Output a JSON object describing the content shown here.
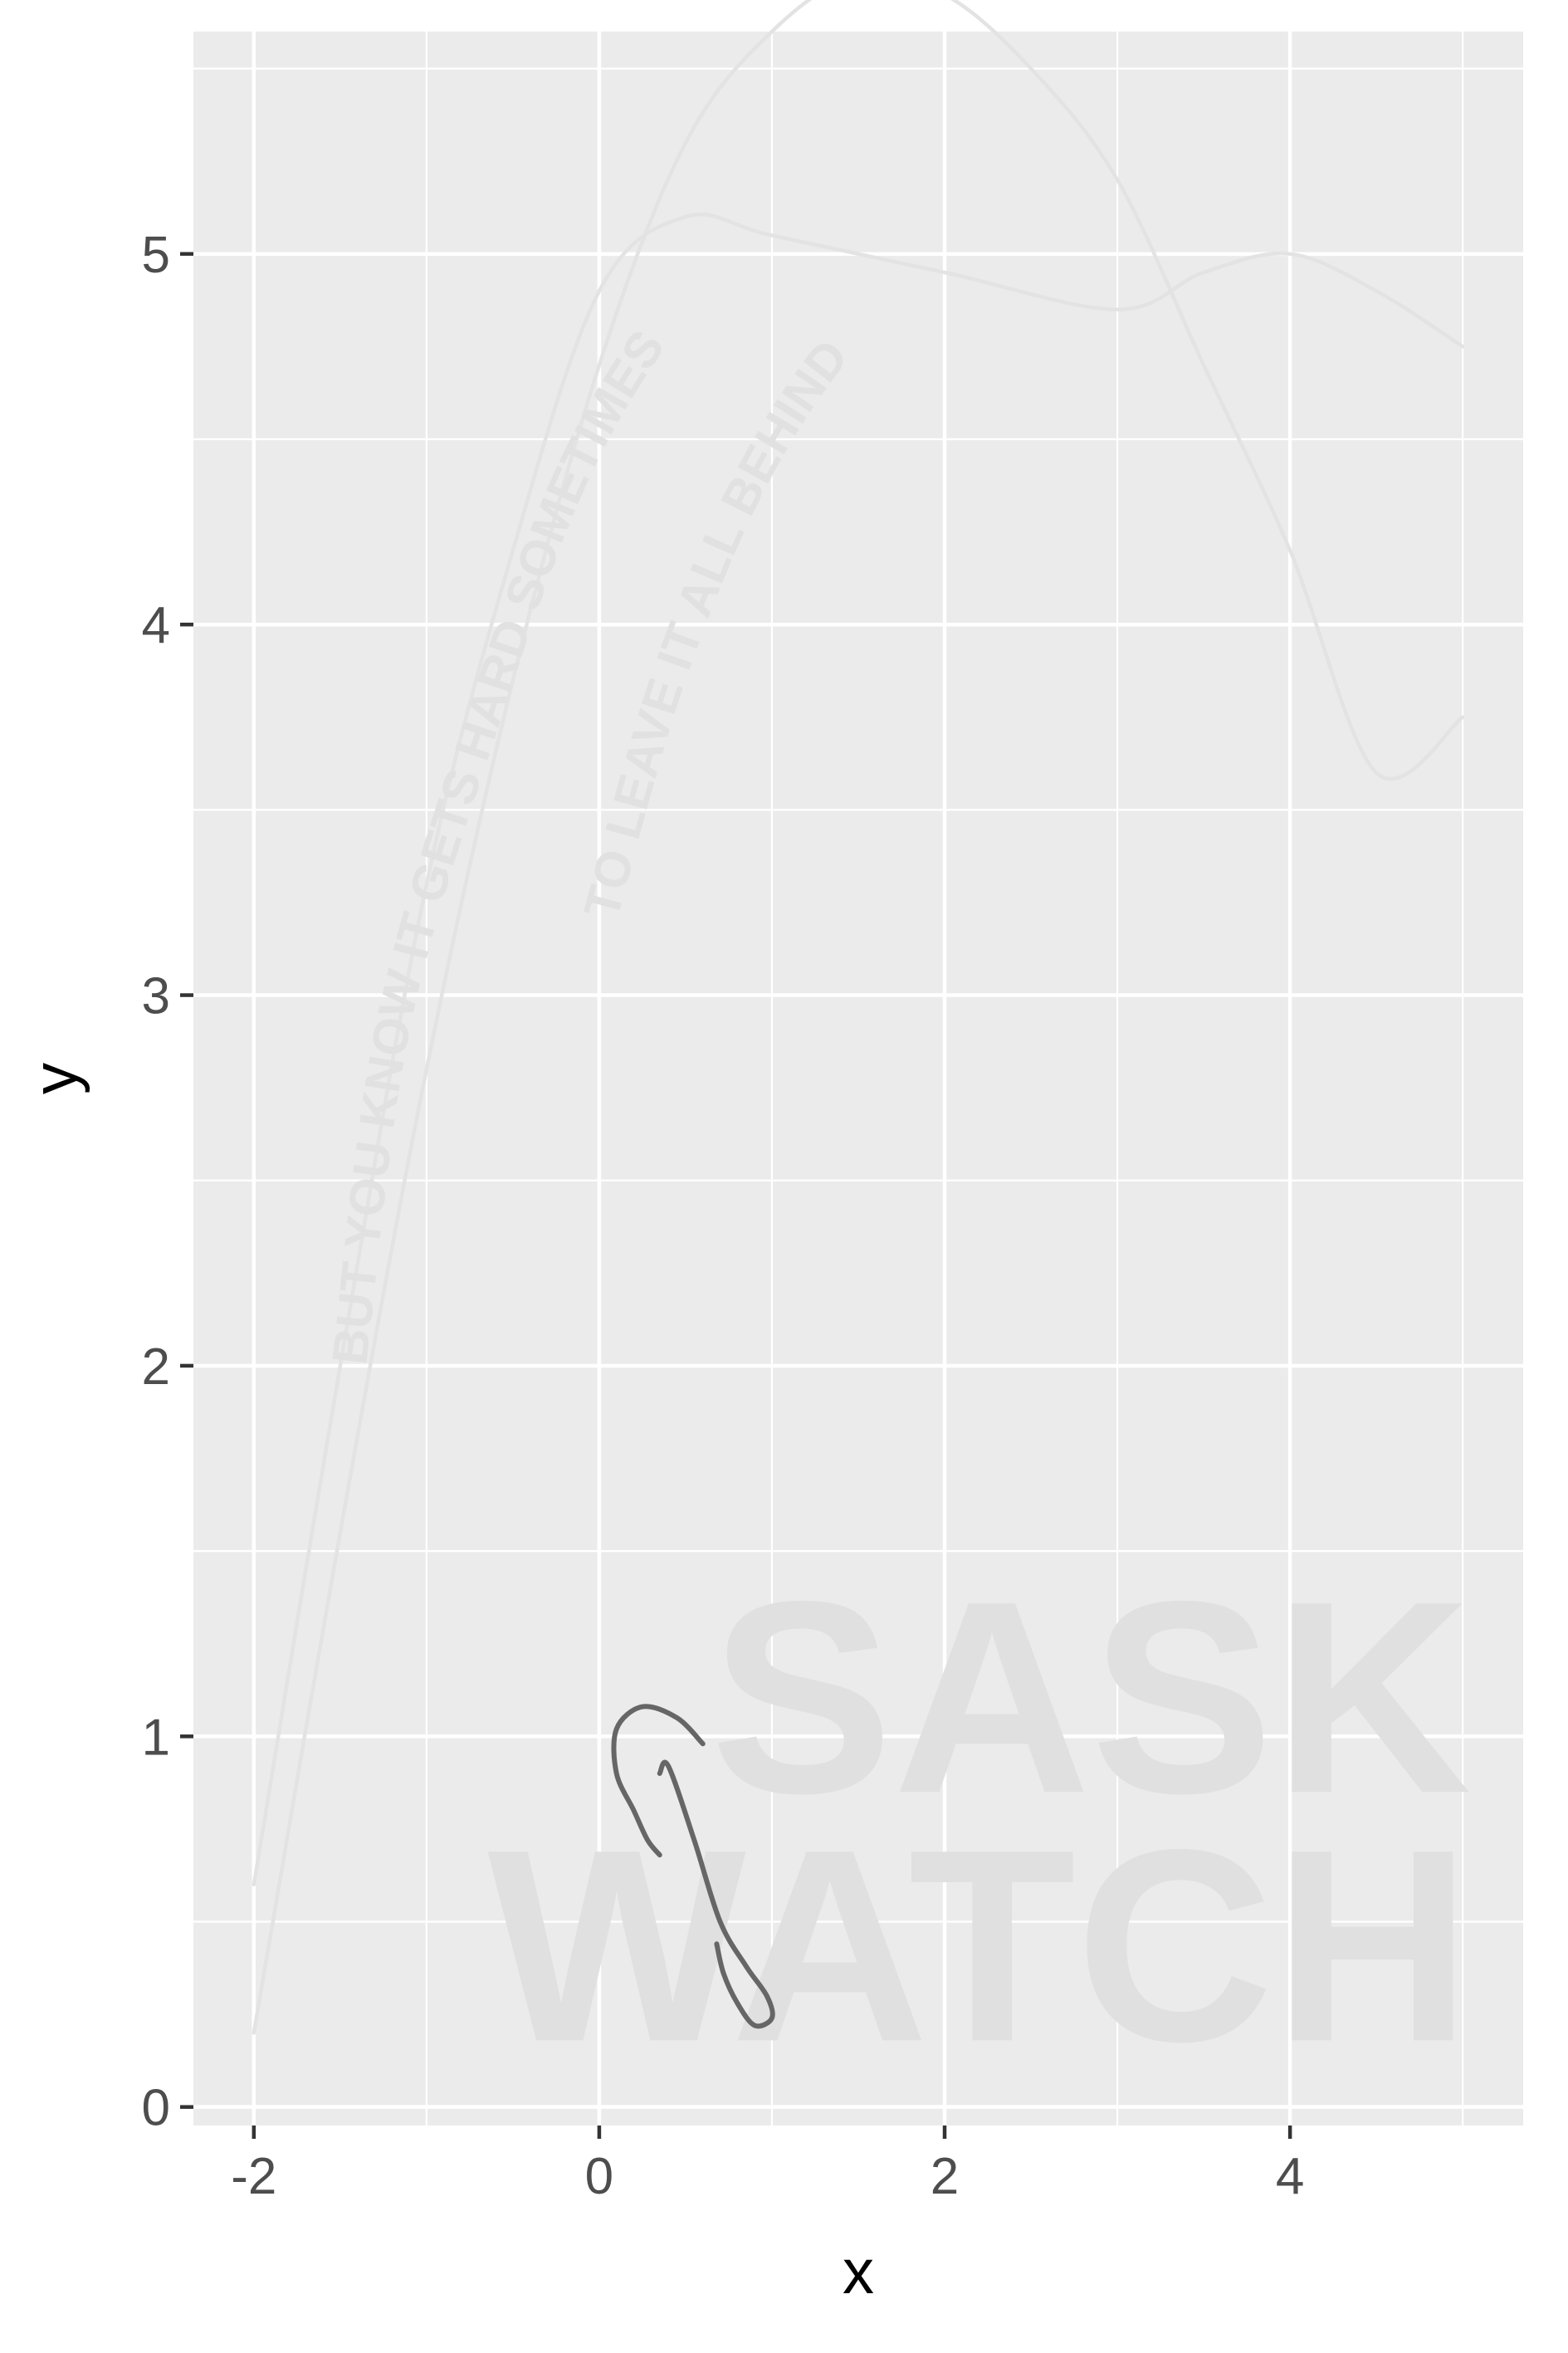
{
  "chart_data": {
    "type": "line",
    "title": "",
    "xlabel": "x",
    "ylabel": "y",
    "xlim": [
      -2.35,
      5.35
    ],
    "ylim": [
      -0.05,
      5.6
    ],
    "x_ticks": [
      -2,
      0,
      2,
      4
    ],
    "y_ticks": [
      0,
      1,
      2,
      3,
      4,
      5
    ],
    "x_tick_labels": [
      "-2",
      "0",
      "2",
      "4"
    ],
    "y_tick_labels": [
      "0",
      "1",
      "2",
      "3",
      "4",
      "5"
    ],
    "grid": true,
    "legend": "none",
    "colors": {
      "panel": "#ebebeb",
      "grid": "#ffffff",
      "faint_curve": "#e3e3e3",
      "faint_text": "#e1e1e1",
      "dark_curve": "#666666",
      "watermark": "#e0e0e0"
    },
    "series": [
      {
        "points": [
          [
            -2,
            0.2
          ],
          [
            -1.5,
            1.55
          ],
          [
            -1,
            2.8
          ],
          [
            -0.5,
            3.85
          ],
          [
            0,
            4.7
          ],
          [
            0.5,
            5.3
          ],
          [
            1,
            5.6
          ],
          [
            1.5,
            5.75
          ],
          [
            2,
            5.7
          ],
          [
            2.5,
            5.5
          ],
          [
            3,
            5.2
          ],
          [
            3.5,
            4.7
          ],
          [
            4,
            4.2
          ],
          [
            4.5,
            3.6
          ],
          [
            5,
            3.75
          ]
        ]
      },
      {
        "points": [
          [
            -2,
            0.6
          ],
          [
            -1.5,
            2.0
          ],
          [
            -1,
            3.3
          ],
          [
            -0.5,
            4.2
          ],
          [
            0,
            4.9
          ],
          [
            0.5,
            5.1
          ],
          [
            1,
            5.05
          ],
          [
            2,
            4.95
          ],
          [
            3,
            4.85
          ],
          [
            3.5,
            4.95
          ],
          [
            4,
            5.0
          ],
          [
            4.5,
            4.9
          ],
          [
            5,
            4.75
          ]
        ]
      },
      {
        "points": [
          [
            0.6,
            0.98
          ],
          [
            0.45,
            1.05
          ],
          [
            0.25,
            1.08
          ],
          [
            0.1,
            1.02
          ],
          [
            0.1,
            0.9
          ],
          [
            0.2,
            0.8
          ],
          [
            0.28,
            0.72
          ],
          [
            0.35,
            0.68
          ]
        ]
      },
      {
        "points": [
          [
            0.35,
            0.9
          ],
          [
            0.4,
            0.92
          ],
          [
            0.55,
            0.72
          ],
          [
            0.7,
            0.5
          ],
          [
            0.85,
            0.38
          ],
          [
            0.97,
            0.3
          ],
          [
            1.0,
            0.24
          ],
          [
            0.9,
            0.22
          ],
          [
            0.8,
            0.28
          ],
          [
            0.72,
            0.36
          ],
          [
            0.68,
            0.44
          ]
        ]
      }
    ],
    "annotations": [
      {
        "text": "BUT YOU KNOW IT GETS HARD SOMETIMES",
        "path_points": [
          [
            -1.35,
            2.0
          ],
          [
            -1.1,
            2.9
          ],
          [
            -0.6,
            3.7
          ],
          [
            0.0,
            4.45
          ],
          [
            0.8,
            5.0
          ],
          [
            1.6,
            5.3
          ],
          [
            2.5,
            5.45
          ]
        ]
      },
      {
        "text": "TO LEAVE IT ALL BEHIND",
        "path_points": [
          [
            0.1,
            3.2
          ],
          [
            0.5,
            3.85
          ],
          [
            1.0,
            4.4
          ],
          [
            1.6,
            4.8
          ],
          [
            2.3,
            5.05
          ]
        ]
      }
    ],
    "watermark_lines": [
      "SASK",
      "WATCH"
    ]
  }
}
